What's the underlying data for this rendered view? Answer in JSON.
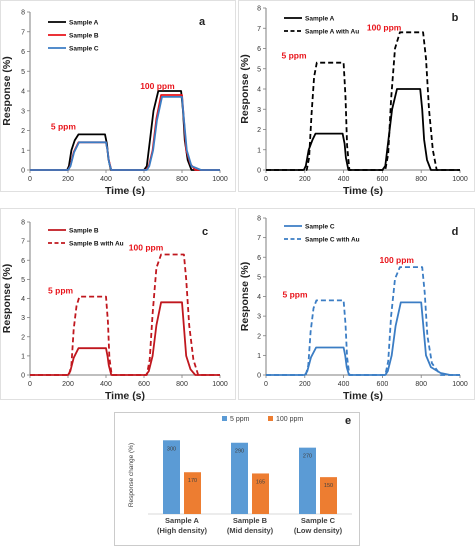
{
  "chart_data": [
    {
      "id": "a",
      "type": "line",
      "panel_label": "a",
      "xlabel": "Time (s)",
      "ylabel": "Response (%)",
      "xlim": [
        0,
        1000
      ],
      "ylim": [
        0,
        8
      ],
      "xticks": [
        0,
        200,
        400,
        600,
        800,
        1000
      ],
      "yticks": [
        0,
        1,
        2,
        3,
        4,
        5,
        6,
        7,
        8
      ],
      "legend_position": "top-left",
      "annotations": [
        {
          "text": "5 ppm",
          "x": 110,
          "y": 2.05,
          "color": "#e8141b"
        },
        {
          "text": "100 ppm",
          "x": 580,
          "y": 4.1,
          "color": "#e8141b"
        }
      ],
      "series": [
        {
          "name": "Sample A",
          "color": "#000000",
          "dash": "solid",
          "x": [
            0,
            195,
            205,
            218,
            235,
            255,
            395,
            405,
            412,
            425,
            600,
            615,
            630,
            650,
            675,
            795,
            805,
            815,
            830,
            850,
            1000
          ],
          "y": [
            0,
            0,
            0.2,
            1.0,
            1.5,
            1.8,
            1.8,
            1.3,
            0.6,
            0,
            0,
            0.2,
            1.4,
            3.0,
            4.0,
            4.0,
            3.0,
            1.5,
            0.5,
            0,
            0
          ]
        },
        {
          "name": "Sample B",
          "color": "#e8141b",
          "dash": "solid",
          "x": [
            0,
            200,
            212,
            230,
            255,
            400,
            408,
            415,
            428,
            610,
            625,
            645,
            665,
            690,
            800,
            808,
            822,
            845,
            870,
            1000
          ],
          "y": [
            0,
            0,
            0.2,
            0.9,
            1.4,
            1.4,
            1.0,
            0.5,
            0,
            0,
            0.2,
            1.0,
            2.6,
            3.8,
            3.8,
            2.8,
            1.0,
            0.3,
            0,
            0
          ]
        },
        {
          "name": "Sample C",
          "color": "#3b7dc4",
          "dash": "solid",
          "x": [
            0,
            200,
            213,
            232,
            258,
            400,
            408,
            416,
            428,
            615,
            628,
            648,
            668,
            695,
            800,
            808,
            825,
            850,
            900,
            1000
          ],
          "y": [
            0,
            0,
            0.2,
            0.9,
            1.4,
            1.4,
            1.0,
            0.4,
            0,
            0,
            0.2,
            1.0,
            2.5,
            3.7,
            3.7,
            2.8,
            1.0,
            0.2,
            0,
            0
          ]
        }
      ]
    },
    {
      "id": "b",
      "type": "line",
      "panel_label": "b",
      "xlabel": "Time (s)",
      "ylabel": "Response (%)",
      "xlim": [
        0,
        1000
      ],
      "ylim": [
        0,
        8
      ],
      "xticks": [
        0,
        200,
        400,
        600,
        800,
        1000
      ],
      "yticks": [
        0,
        1,
        2,
        3,
        4,
        5,
        6,
        7,
        8
      ],
      "legend_position": "top-left",
      "annotations": [
        {
          "text": "5 ppm",
          "x": 80,
          "y": 5.5,
          "color": "#e8141b"
        },
        {
          "text": "100 ppm",
          "x": 520,
          "y": 6.9,
          "color": "#e8141b"
        }
      ],
      "series": [
        {
          "name": "Sample A",
          "color": "#000000",
          "dash": "solid",
          "x": [
            0,
            195,
            205,
            220,
            240,
            255,
            395,
            405,
            412,
            425,
            600,
            615,
            630,
            650,
            675,
            795,
            805,
            815,
            830,
            850,
            1000
          ],
          "y": [
            0,
            0,
            0.2,
            1.0,
            1.5,
            1.8,
            1.8,
            1.3,
            0.6,
            0,
            0,
            0.2,
            1.4,
            3.0,
            4.0,
            4.0,
            3.0,
            1.5,
            0.5,
            0,
            0
          ]
        },
        {
          "name": "Sample A with Au",
          "color": "#000000",
          "dash": "dashed",
          "x": [
            0,
            210,
            222,
            235,
            248,
            262,
            400,
            410,
            418,
            430,
            615,
            630,
            645,
            665,
            690,
            810,
            825,
            840,
            860,
            880,
            1000
          ],
          "y": [
            0,
            0,
            0.6,
            2.8,
            4.6,
            5.3,
            5.3,
            3.6,
            1.2,
            0,
            0,
            0.8,
            3.5,
            6.0,
            6.8,
            6.8,
            5.5,
            3.0,
            1.0,
            0,
            0
          ]
        }
      ]
    },
    {
      "id": "c",
      "type": "line",
      "panel_label": "c",
      "xlabel": "Time (s)",
      "ylabel": "Response (%)",
      "xlim": [
        0,
        1000
      ],
      "ylim": [
        0,
        8
      ],
      "xticks": [
        0,
        200,
        400,
        600,
        800,
        1000
      ],
      "yticks": [
        0,
        1,
        2,
        3,
        4,
        5,
        6,
        7,
        8
      ],
      "legend_position": "top-left",
      "annotations": [
        {
          "text": "5 ppm",
          "x": 95,
          "y": 4.25,
          "color": "#e8141b"
        },
        {
          "text": "100 ppm",
          "x": 520,
          "y": 6.5,
          "color": "#e8141b"
        }
      ],
      "series": [
        {
          "name": "Sample B",
          "color": "#c0171e",
          "dash": "solid",
          "x": [
            0,
            200,
            212,
            230,
            255,
            400,
            408,
            415,
            428,
            610,
            625,
            645,
            665,
            690,
            800,
            808,
            822,
            845,
            870,
            1000
          ],
          "y": [
            0,
            0,
            0.2,
            0.9,
            1.4,
            1.4,
            1.0,
            0.5,
            0,
            0,
            0.2,
            1.0,
            2.6,
            3.8,
            3.8,
            2.8,
            1.0,
            0.3,
            0,
            0
          ]
        },
        {
          "name": "Sample B with Au",
          "color": "#c0171e",
          "dash": "dashed",
          "x": [
            0,
            205,
            218,
            230,
            245,
            260,
            400,
            410,
            418,
            430,
            615,
            630,
            645,
            665,
            690,
            810,
            822,
            838,
            860,
            885,
            1000
          ],
          "y": [
            0,
            0,
            0.5,
            2.4,
            3.6,
            4.1,
            4.1,
            2.8,
            0.9,
            0,
            0,
            0.8,
            3.2,
            5.6,
            6.3,
            6.3,
            5.0,
            2.6,
            0.8,
            0,
            0
          ]
        }
      ]
    },
    {
      "id": "d",
      "type": "line",
      "panel_label": "d",
      "xlabel": "Time (s)",
      "ylabel": "Response (%)",
      "xlim": [
        0,
        1000
      ],
      "ylim": [
        0,
        8
      ],
      "xticks": [
        0,
        200,
        400,
        600,
        800,
        1000
      ],
      "yticks": [
        0,
        1,
        2,
        3,
        4,
        5,
        6,
        7,
        8
      ],
      "legend_position": "top-left",
      "annotations": [
        {
          "text": "5 ppm",
          "x": 85,
          "y": 3.95,
          "color": "#e8141b"
        },
        {
          "text": "100 ppm",
          "x": 585,
          "y": 5.7,
          "color": "#e8141b"
        }
      ],
      "series": [
        {
          "name": "Sample C",
          "color": "#3b7dc4",
          "dash": "solid",
          "x": [
            0,
            200,
            213,
            232,
            258,
            400,
            408,
            416,
            428,
            615,
            628,
            648,
            668,
            695,
            800,
            808,
            825,
            850,
            900,
            950,
            1000
          ],
          "y": [
            0,
            0,
            0.2,
            0.9,
            1.4,
            1.4,
            1.0,
            0.4,
            0,
            0,
            0.2,
            1.0,
            2.5,
            3.7,
            3.7,
            2.8,
            1.0,
            0.4,
            0.1,
            0,
            0
          ]
        },
        {
          "name": "Sample C with Au",
          "color": "#3b7dc4",
          "dash": "dashed",
          "x": [
            0,
            205,
            218,
            230,
            245,
            260,
            400,
            410,
            418,
            430,
            615,
            630,
            645,
            665,
            690,
            805,
            818,
            832,
            855,
            900,
            1000
          ],
          "y": [
            0,
            0,
            0.5,
            2.2,
            3.4,
            3.8,
            3.8,
            2.6,
            0.9,
            0,
            0,
            0.7,
            3.0,
            4.9,
            5.5,
            5.5,
            4.2,
            2.0,
            0.6,
            0,
            0
          ]
        }
      ]
    },
    {
      "id": "e",
      "type": "bar",
      "panel_label": "e",
      "ylabel": "Response change (%)",
      "ylim": [
        0,
        350
      ],
      "categories": [
        "Sample A\n(High density)",
        "Sample B\n(Mid density)",
        "Sample C\n(Low density)"
      ],
      "legend_position": "top-center",
      "series": [
        {
          "name": "5 ppm",
          "color": "#5b9bd5",
          "values": [
            300,
            290,
            270
          ]
        },
        {
          "name": "100 ppm",
          "color": "#ed7d31",
          "values": [
            170,
            165,
            150
          ]
        }
      ]
    }
  ]
}
